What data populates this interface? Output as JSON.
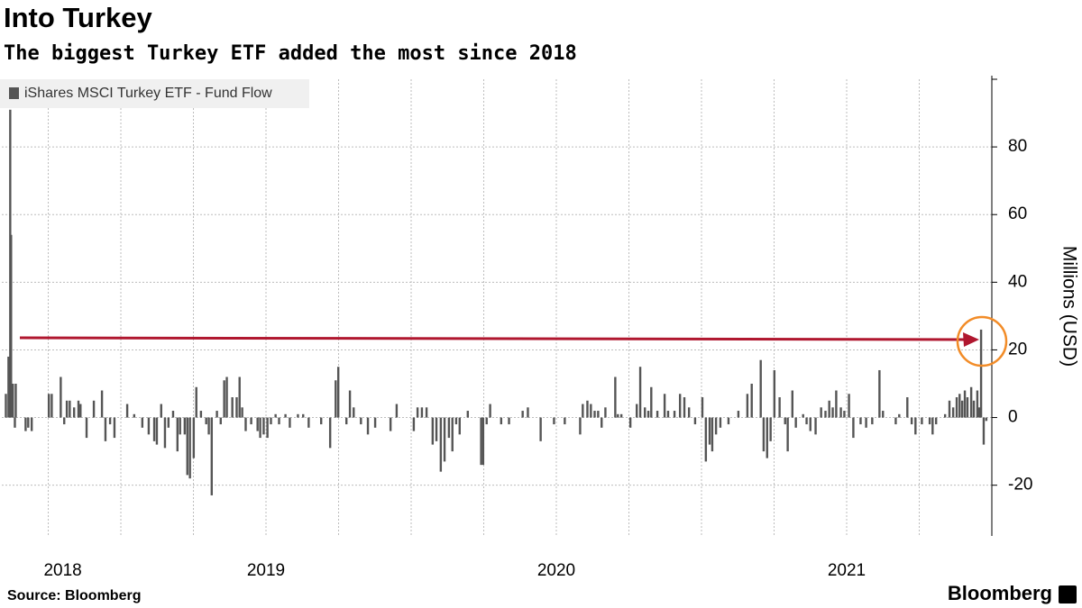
{
  "chart_data": {
    "type": "bar",
    "title": "Into Turkey",
    "subtitle": "The biggest Turkey ETF added the most since 2018",
    "y_label": "Millions (USD)",
    "source": "Source: Bloomberg",
    "brand": "Bloomberg",
    "x": [
      2018.604,
      2018.613,
      2018.619,
      2018.622,
      2018.628,
      2018.635,
      2018.638,
      2018.672,
      2018.681,
      2018.693,
      2018.752,
      2018.762,
      2018.793,
      2018.805,
      2018.814,
      2018.824,
      2018.839,
      2018.854,
      2018.861,
      2018.882,
      2018.907,
      2018.935,
      2018.947,
      2018.963,
      2018.978,
      2019.022,
      2019.046,
      2019.074,
      2019.096,
      2019.115,
      2019.124,
      2019.139,
      2019.152,
      2019.164,
      2019.18,
      2019.195,
      2019.204,
      2019.22,
      2019.229,
      2019.238,
      2019.251,
      2019.26,
      2019.276,
      2019.294,
      2019.303,
      2019.313,
      2019.331,
      2019.344,
      2019.356,
      2019.365,
      2019.384,
      2019.399,
      2019.409,
      2019.418,
      2019.43,
      2019.449,
      2019.471,
      2019.48,
      2019.492,
      2019.505,
      2019.517,
      2019.533,
      2019.545,
      2019.567,
      2019.582,
      2019.61,
      2019.628,
      2019.647,
      2019.69,
      2019.721,
      2019.74,
      2019.749,
      2019.777,
      2019.789,
      2019.802,
      2019.827,
      2019.851,
      2019.876,
      2019.929,
      2019.95,
      2020.009,
      2020.022,
      2020.037,
      2020.053,
      2020.074,
      2020.087,
      2020.102,
      2020.115,
      2020.13,
      2020.142,
      2020.155,
      2020.167,
      2020.195,
      2020.241,
      2020.248,
      2020.26,
      2020.272,
      2020.31,
      2020.337,
      2020.384,
      2020.402,
      2020.446,
      2020.492,
      2020.529,
      2020.582,
      2020.591,
      2020.607,
      2020.619,
      2020.632,
      2020.644,
      2020.656,
      2020.669,
      2020.703,
      2020.712,
      2020.724,
      2020.755,
      2020.777,
      2020.789,
      2020.805,
      2020.817,
      2020.827,
      2020.848,
      2020.873,
      2020.885,
      2020.907,
      2020.926,
      2020.941,
      2020.957,
      2020.978,
      2021.003,
      2021.015,
      2021.028,
      2021.037,
      2021.05,
      2021.065,
      2021.093,
      2021.127,
      2021.158,
      2021.173,
      2021.204,
      2021.214,
      2021.226,
      2021.238,
      2021.251,
      2021.269,
      2021.288,
      2021.297,
      2021.313,
      2021.325,
      2021.35,
      2021.362,
      2021.375,
      2021.393,
      2021.412,
      2021.427,
      2021.44,
      2021.452,
      2021.464,
      2021.48,
      2021.492,
      2021.508,
      2021.523,
      2021.548,
      2021.567,
      2021.588,
      2021.613,
      2021.625,
      2021.669,
      2021.681,
      2021.709,
      2021.724,
      2021.737,
      2021.759,
      2021.786,
      2021.796,
      2021.808,
      2021.839,
      2021.854,
      2021.867,
      2021.879,
      2021.889,
      2021.898,
      2021.907,
      2021.916,
      2021.929,
      2021.938,
      2021.95,
      2021.957,
      2021.963,
      2021.972,
      2021.981
    ],
    "series": [
      {
        "name": "iShares MSCI Turkey ETF - Fund Flow",
        "color": "#555555",
        "values": [
          7,
          18,
          91,
          54,
          10,
          -3,
          10,
          -4,
          -3,
          -4,
          7,
          7,
          12,
          -2,
          5,
          5,
          3,
          5,
          4,
          -6,
          5,
          8,
          -7,
          -2,
          -6,
          4,
          1,
          -3,
          -5,
          -7,
          -8,
          4,
          -9,
          -3,
          2,
          -10,
          -5,
          -5,
          -17,
          -18,
          -12,
          9,
          2,
          -2,
          -5,
          -23,
          2,
          -2,
          11,
          12,
          6,
          6,
          12,
          3,
          -4,
          -2,
          -4,
          -6,
          -5,
          -6,
          -2,
          1,
          -2,
          1,
          -3,
          1,
          1,
          -3,
          -2,
          -9,
          11,
          15,
          -2,
          8,
          3,
          -2,
          -5,
          -3,
          -4,
          4,
          -4,
          3,
          3,
          3,
          -8,
          -7,
          -16,
          -13,
          -6,
          -10,
          -2,
          -5,
          2,
          -14,
          -14,
          -2,
          4,
          -2,
          -2,
          2,
          3,
          -7,
          -2,
          -2,
          -5,
          4,
          5,
          4,
          2,
          2,
          -3,
          3,
          12,
          1,
          1,
          -3,
          4,
          15,
          3,
          2,
          9,
          2,
          7,
          2,
          2,
          7,
          6,
          3,
          -2,
          6,
          -13,
          -8,
          -10,
          -5,
          -3,
          -2,
          2,
          7,
          10,
          17,
          -10,
          -12,
          -7,
          14,
          6,
          -2,
          -10,
          8,
          -3,
          1,
          -2,
          -4,
          -5,
          3,
          2,
          5,
          3,
          8,
          3,
          2,
          7,
          -6,
          -2,
          -3,
          -2,
          14,
          2,
          -2,
          1,
          6,
          -2,
          -5,
          -2,
          -2,
          -5,
          -2,
          1,
          5,
          3,
          6,
          7,
          5,
          8,
          6,
          9,
          5,
          8,
          3,
          26,
          -8,
          -1
        ]
      }
    ],
    "xlim": [
      2018.59,
      2022.0
    ],
    "xticks": [
      {
        "value": 2018.8,
        "label": "2018"
      },
      {
        "value": 2019.5,
        "label": "2019"
      },
      {
        "value": 2020.5,
        "label": "2020"
      },
      {
        "value": 2021.5,
        "label": "2021"
      }
    ],
    "xgrid": [
      2018.75,
      2019,
      2019.25,
      2019.5,
      2019.75,
      2020,
      2020.25,
      2020.5,
      2020.75,
      2021,
      2021.25,
      2021.5,
      2021.75
    ],
    "ylim": [
      -35,
      100
    ],
    "yticks": [
      -20,
      0,
      20,
      40,
      60,
      80
    ],
    "grid": true
  }
}
